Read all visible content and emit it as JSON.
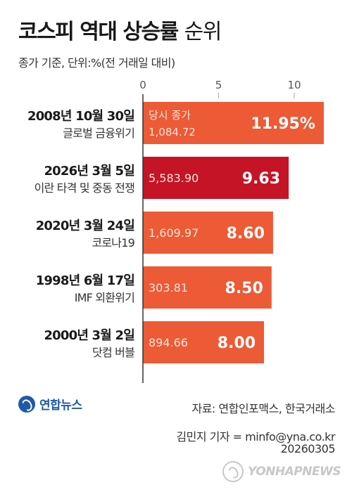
{
  "header": {
    "title_bold": "코스피 역대 상승률",
    "title_light": "순위",
    "subtitle": "종가 기준, 단위:%(전 거래일 대비)"
  },
  "chart_data": {
    "type": "bar",
    "orientation": "horizontal",
    "xlim": [
      0,
      12
    ],
    "xticks": [
      0,
      5,
      10
    ],
    "note_label": "당시 종가",
    "categories": [
      {
        "date": "2008년 10월 30일",
        "event": "글로벌 금융위기"
      },
      {
        "date": "2026년 3월 5일",
        "event": "이란 타격 및 중동 전쟁"
      },
      {
        "date": "2020년 3월 24일",
        "event": "코로나19"
      },
      {
        "date": "1998년 6월 17일",
        "event": "IMF 외환위기"
      },
      {
        "date": "2000년 3월 2일",
        "event": "닷컴 버블"
      }
    ],
    "values": [
      11.95,
      9.63,
      8.6,
      8.5,
      8.0
    ],
    "value_labels": [
      "11.95%",
      "9.63",
      "8.60",
      "8.50",
      "8.00"
    ],
    "closing_prices": [
      "1,084.72",
      "5,583.90",
      "1,609.97",
      "303.81",
      "894.66"
    ],
    "colors": [
      "#ec5a36",
      "#c41426",
      "#ec5a36",
      "#ec5a36",
      "#ec5a36"
    ]
  },
  "footer": {
    "logo": "연합뉴스",
    "source": "자료: 연합인포맥스, 한국거래소",
    "reporter": "김민지 기자 = minfo@yna.co.kr",
    "date": "20260305",
    "watermark": "YONHAPNEWS"
  }
}
